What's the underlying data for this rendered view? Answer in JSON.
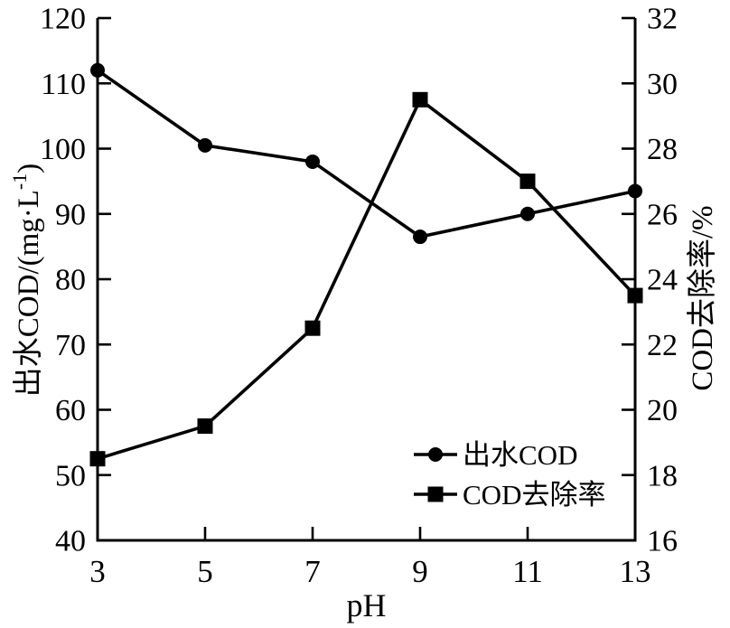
{
  "chart_data": {
    "type": "line",
    "title": "",
    "xlabel": "pH",
    "x": [
      3,
      5,
      7,
      9,
      11,
      13
    ],
    "x_axis": {
      "range": [
        3,
        13
      ],
      "ticks": [
        3,
        5,
        7,
        9,
        11,
        13
      ]
    },
    "left_axis": {
      "label_segments": [
        {
          "t": "出水COD/(mg·L"
        },
        {
          "t": "-1",
          "sup": true
        },
        {
          "t": ")"
        }
      ],
      "label_plain": "出水COD/(mg·L-1)",
      "range": [
        40,
        120
      ],
      "ticks": [
        40,
        50,
        60,
        70,
        80,
        90,
        100,
        110,
        120
      ]
    },
    "right_axis": {
      "label_segments": [
        {
          "t": "COD去除率/%"
        }
      ],
      "label_plain": "COD去除率/%",
      "range": [
        16,
        32
      ],
      "ticks": [
        16,
        18,
        20,
        22,
        24,
        26,
        28,
        30,
        32
      ]
    },
    "series": [
      {
        "name": "出水COD",
        "axis": "left",
        "marker": "circle",
        "values": [
          112,
          100.5,
          98,
          86.5,
          90,
          93.5
        ]
      },
      {
        "name": "COD去除率",
        "axis": "right",
        "marker": "square",
        "values": [
          18.5,
          19.5,
          22.5,
          29.5,
          27,
          23.5
        ]
      }
    ],
    "legend": {
      "position": "inside-lower-right",
      "items": [
        {
          "label": "出水COD",
          "marker": "circle"
        },
        {
          "label": "COD去除率",
          "marker": "square"
        }
      ]
    },
    "grid": false,
    "colors": {
      "ink": "#000000",
      "background": "#ffffff"
    }
  }
}
